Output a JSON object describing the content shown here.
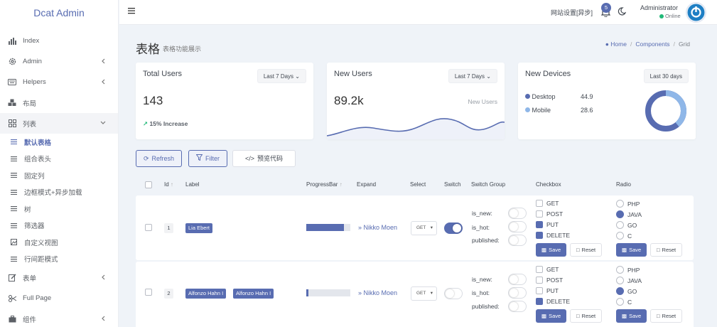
{
  "app": {
    "title": "Dcat Admin"
  },
  "sidebar": {
    "items": [
      {
        "label": "Index",
        "icon": "bar-chart-icon",
        "arrow": false
      },
      {
        "label": "Admin",
        "icon": "gear-icon",
        "arrow": true
      },
      {
        "label": "Helpers",
        "icon": "keyboard-icon",
        "arrow": true
      },
      {
        "label": "布局",
        "icon": "cubes-icon",
        "arrow": false
      },
      {
        "label": "列表",
        "icon": "grid-icon",
        "arrow": true
      }
    ],
    "sub_items": [
      {
        "label": "默认表格",
        "icon": "list-icon",
        "active": true
      },
      {
        "label": "组合表头",
        "icon": "list-icon"
      },
      {
        "label": "固定列",
        "icon": "list-icon"
      },
      {
        "label": "边框模式+异步加载",
        "icon": "list-icon"
      },
      {
        "label": "树",
        "icon": "list-icon"
      },
      {
        "label": "筛选器",
        "icon": "list-icon"
      },
      {
        "label": "自定义视图",
        "icon": "image-icon"
      },
      {
        "label": "行间距模式",
        "icon": "list-icon"
      }
    ],
    "bottom_items": [
      {
        "label": "表单",
        "icon": "edit-icon",
        "arrow": true
      },
      {
        "label": "Full Page",
        "icon": "cut-icon",
        "arrow": false
      },
      {
        "label": "组件",
        "icon": "briefcase-icon",
        "arrow": true
      }
    ]
  },
  "topbar": {
    "site_setting": "网站设置[异步]",
    "notification_count": "5",
    "user_name": "Administrator",
    "user_status": "Online"
  },
  "header": {
    "title": "表格",
    "description": "表格功能展示",
    "breadcrumb": [
      "Home",
      "Components",
      "Grid"
    ]
  },
  "cards": {
    "total_users": {
      "title": "Total Users",
      "range": "Last 7 Days",
      "value": "143",
      "increase": "15% Increase"
    },
    "new_users": {
      "title": "New Users",
      "range": "Last 7 Days",
      "value": "89.2k",
      "series_label": "New Users"
    },
    "new_devices": {
      "title": "New Devices",
      "range": "Last 30 days",
      "legend": [
        {
          "name": "Desktop",
          "value": "44.9",
          "color": "#586cb1"
        },
        {
          "name": "Mobile",
          "value": "28.6",
          "color": "#8fb7e8"
        }
      ]
    }
  },
  "toolbar": {
    "refresh": "Refresh",
    "filter": "Filter",
    "preview": "预览代码"
  },
  "table": {
    "headers": {
      "id": "Id",
      "label": "Label",
      "progress": "ProgressBar",
      "expand": "Expand",
      "select": "Select",
      "switch": "Switch",
      "switch_group": "Switch Group",
      "checkbox": "Checkbox",
      "radio": "Radio"
    },
    "switch_group_labels": [
      "is_new:",
      "is_hot:",
      "published:"
    ],
    "checkbox_options": [
      "GET",
      "POST",
      "PUT",
      "DELETE"
    ],
    "radio_options": [
      "PHP",
      "JAVA",
      "GO",
      "C"
    ],
    "save_label": "Save",
    "reset_label": "Reset",
    "rows": [
      {
        "id": "1",
        "labels": [
          "Lia Ebert"
        ],
        "progress": 0.85,
        "expand": "Nikko Moen",
        "select": "GET",
        "switch": true,
        "checked": [
          false,
          false,
          true,
          true
        ],
        "radio": 1
      },
      {
        "id": "2",
        "labels": [
          "Alfonzo Hahn I",
          "Alfonzo Hahn I"
        ],
        "progress": 0.05,
        "expand": "Nikko Moen",
        "select": "GET",
        "switch": false,
        "checked": [
          false,
          false,
          false,
          true
        ],
        "radio": 2
      }
    ]
  }
}
